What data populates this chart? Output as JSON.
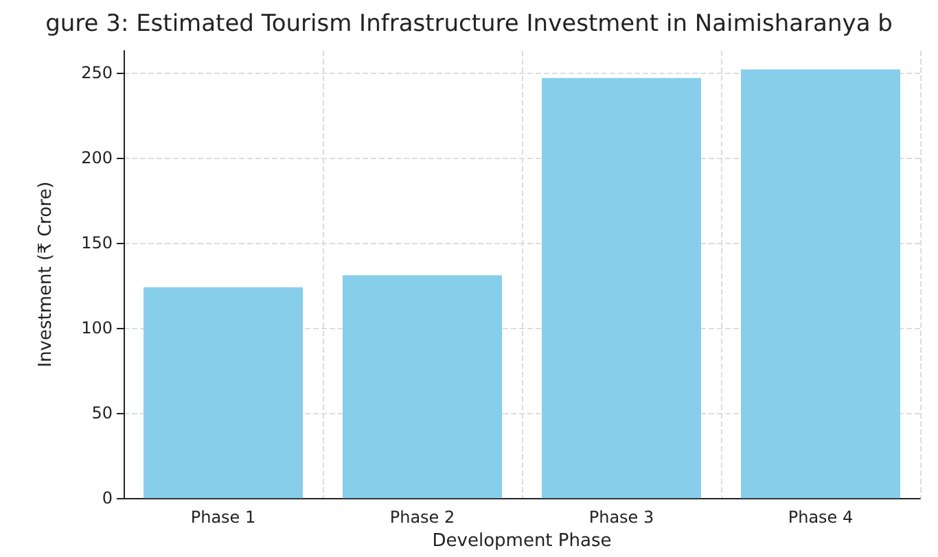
{
  "chart_data": {
    "type": "bar",
    "title": "gure 3: Estimated Tourism Infrastructure Investment in Naimisharanya b",
    "xlabel": "Development Phase",
    "ylabel": "Investment (₹ Crore)",
    "categories": [
      "Phase 1",
      "Phase 2",
      "Phase 3",
      "Phase 4"
    ],
    "values": [
      124,
      131,
      247,
      252
    ],
    "color": "#87ceeb",
    "ylim": [
      0,
      263
    ],
    "yticks": [
      0,
      50,
      100,
      150,
      200,
      250
    ],
    "grid": true
  }
}
